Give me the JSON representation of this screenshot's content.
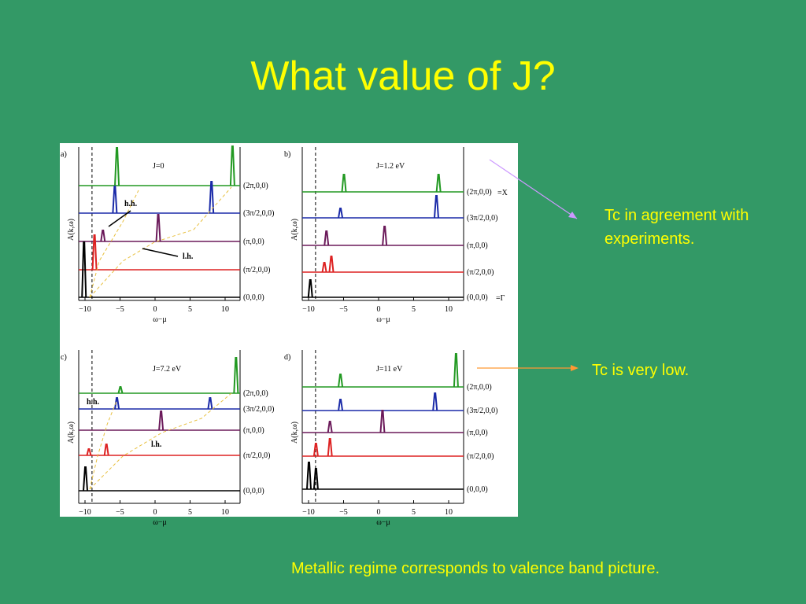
{
  "title": "What value of J?",
  "figure": {
    "panels": [
      {
        "label": "a)",
        "j_label": "J=0",
        "k_points": [
          "(2π,0,0)",
          "(3π/2,0,0)",
          "(π,0,0)",
          "(π/2,0,0)",
          "(0,0,0)"
        ],
        "y_label": "A(k,ω)",
        "x_label": "ω−μ",
        "x_ticks": [
          "−10",
          "−5",
          "0",
          "5",
          "10"
        ],
        "annotations": [
          "h.h.",
          "l.h."
        ]
      },
      {
        "label": "b)",
        "j_label": "J=1.2 eV",
        "k_points": [
          "(2π,0,0)",
          "(3π/2,0,0)",
          "(π,0,0)",
          "(π/2,0,0)",
          "(0,0,0)"
        ],
        "y_label": "A(k,ω)",
        "x_label": "ω−μ",
        "x_ticks": [
          "−10",
          "−5",
          "0",
          "5",
          "10"
        ],
        "x_point_label": "=X",
        "gamma_label": "=Γ"
      },
      {
        "label": "c)",
        "j_label": "J=7.2 eV",
        "k_points": [
          "(2π,0,0)",
          "(3π/2,0,0)",
          "(π,0,0)",
          "(π/2,0,0)",
          "(0,0,0)"
        ],
        "y_label": "A(k,ω)",
        "x_label": "ω−μ",
        "x_ticks": [
          "−10",
          "−5",
          "0",
          "5",
          "10"
        ],
        "annotations": [
          "h.h.",
          "l.h."
        ]
      },
      {
        "label": "d)",
        "j_label": "J=11 eV",
        "k_points": [
          "(2π,0,0)",
          "(3π/2,0,0)",
          "(π,0,0)",
          "(π/2,0,0)",
          "(0,0,0)"
        ],
        "y_label": "A(k,ω)",
        "x_label": "ω−μ",
        "x_ticks": [
          "−10",
          "−5",
          "0",
          "5",
          "10"
        ]
      }
    ]
  },
  "notes": [
    [
      "Tc in agreement with",
      "experiments."
    ],
    [
      "Tc is very low."
    ]
  ],
  "footer": "Metallic regime corresponds to valence band picture."
}
